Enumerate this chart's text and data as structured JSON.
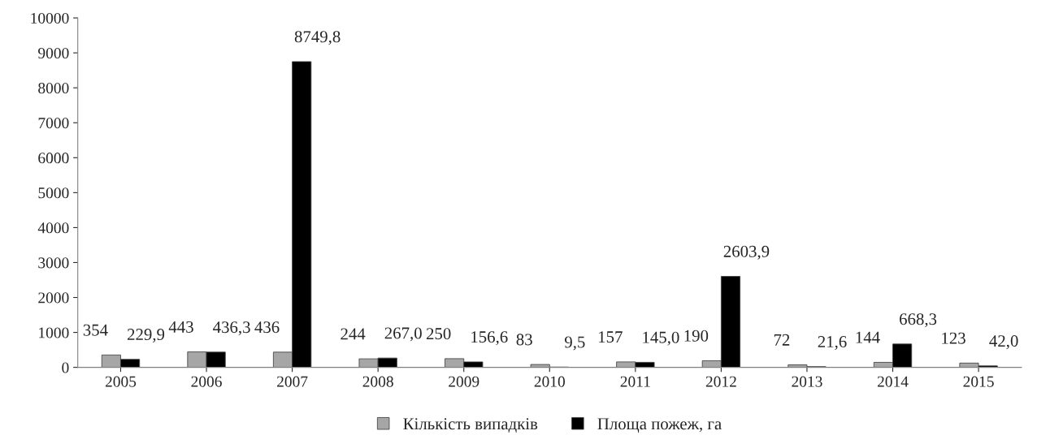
{
  "chart_data": {
    "type": "bar",
    "categories": [
      "2005",
      "2006",
      "2007",
      "2008",
      "2009",
      "2010",
      "2011",
      "2012",
      "2013",
      "2014",
      "2015"
    ],
    "series": [
      {
        "name": "Кількість випадків",
        "color": "#a6a6a6",
        "values": [
          354,
          443,
          436,
          244,
          250,
          83,
          157,
          190,
          72,
          144,
          123
        ],
        "value_labels": [
          "354",
          "443",
          "436",
          "244",
          "250",
          "83",
          "157",
          "190",
          "72",
          "144",
          "123"
        ]
      },
      {
        "name": "Площа пожеж, га",
        "color": "#000000",
        "values": [
          229.9,
          436.3,
          8749.8,
          267.0,
          156.6,
          9.5,
          145.0,
          2603.9,
          21.6,
          668.3,
          42.0
        ],
        "value_labels": [
          "229,9",
          "436,3",
          "8749,8",
          "267,0",
          "156,6",
          "9,5",
          "145,0",
          "2603,9",
          "21,6",
          "668,3",
          "42,0"
        ]
      }
    ],
    "ylim": [
      0,
      10000
    ],
    "yticks": [
      0,
      1000,
      2000,
      3000,
      4000,
      5000,
      6000,
      7000,
      8000,
      9000,
      10000
    ],
    "grid": false,
    "legend": "bottom"
  }
}
